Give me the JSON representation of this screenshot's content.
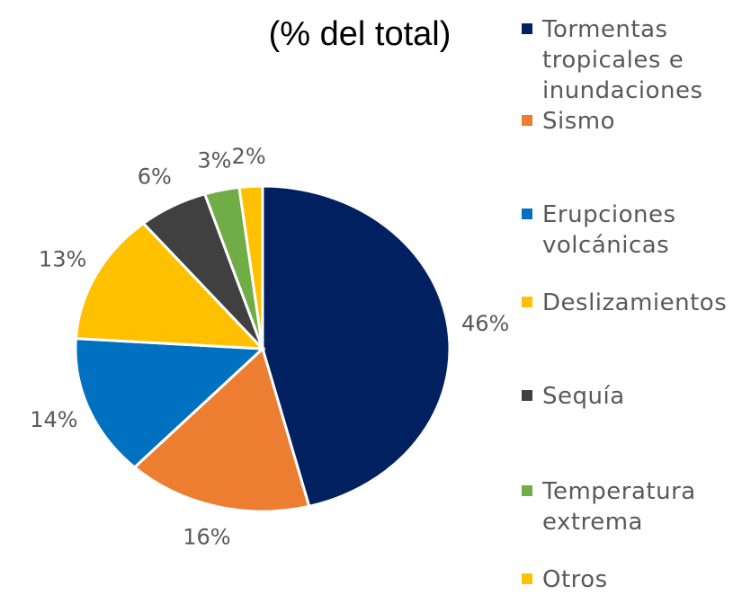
{
  "chart_data": {
    "type": "pie",
    "title": "(% del total)",
    "categories": [
      "Tormentas tropicales e inundaciones",
      "Sismo",
      "Erupciones volcánicas",
      "Deslizamientos",
      "Sequía",
      "Temperatura extrema",
      "Otros"
    ],
    "values": [
      46,
      16,
      14,
      13,
      6,
      3,
      2
    ],
    "value_labels": [
      "46%",
      "16%",
      "14%",
      "13%",
      "6%",
      "3%",
      "2%"
    ],
    "colors": [
      "#002060",
      "#ED7D31",
      "#0070C0",
      "#FFC000",
      "#404040",
      "#70AD47",
      "#FFC000"
    ],
    "legend": "right"
  }
}
